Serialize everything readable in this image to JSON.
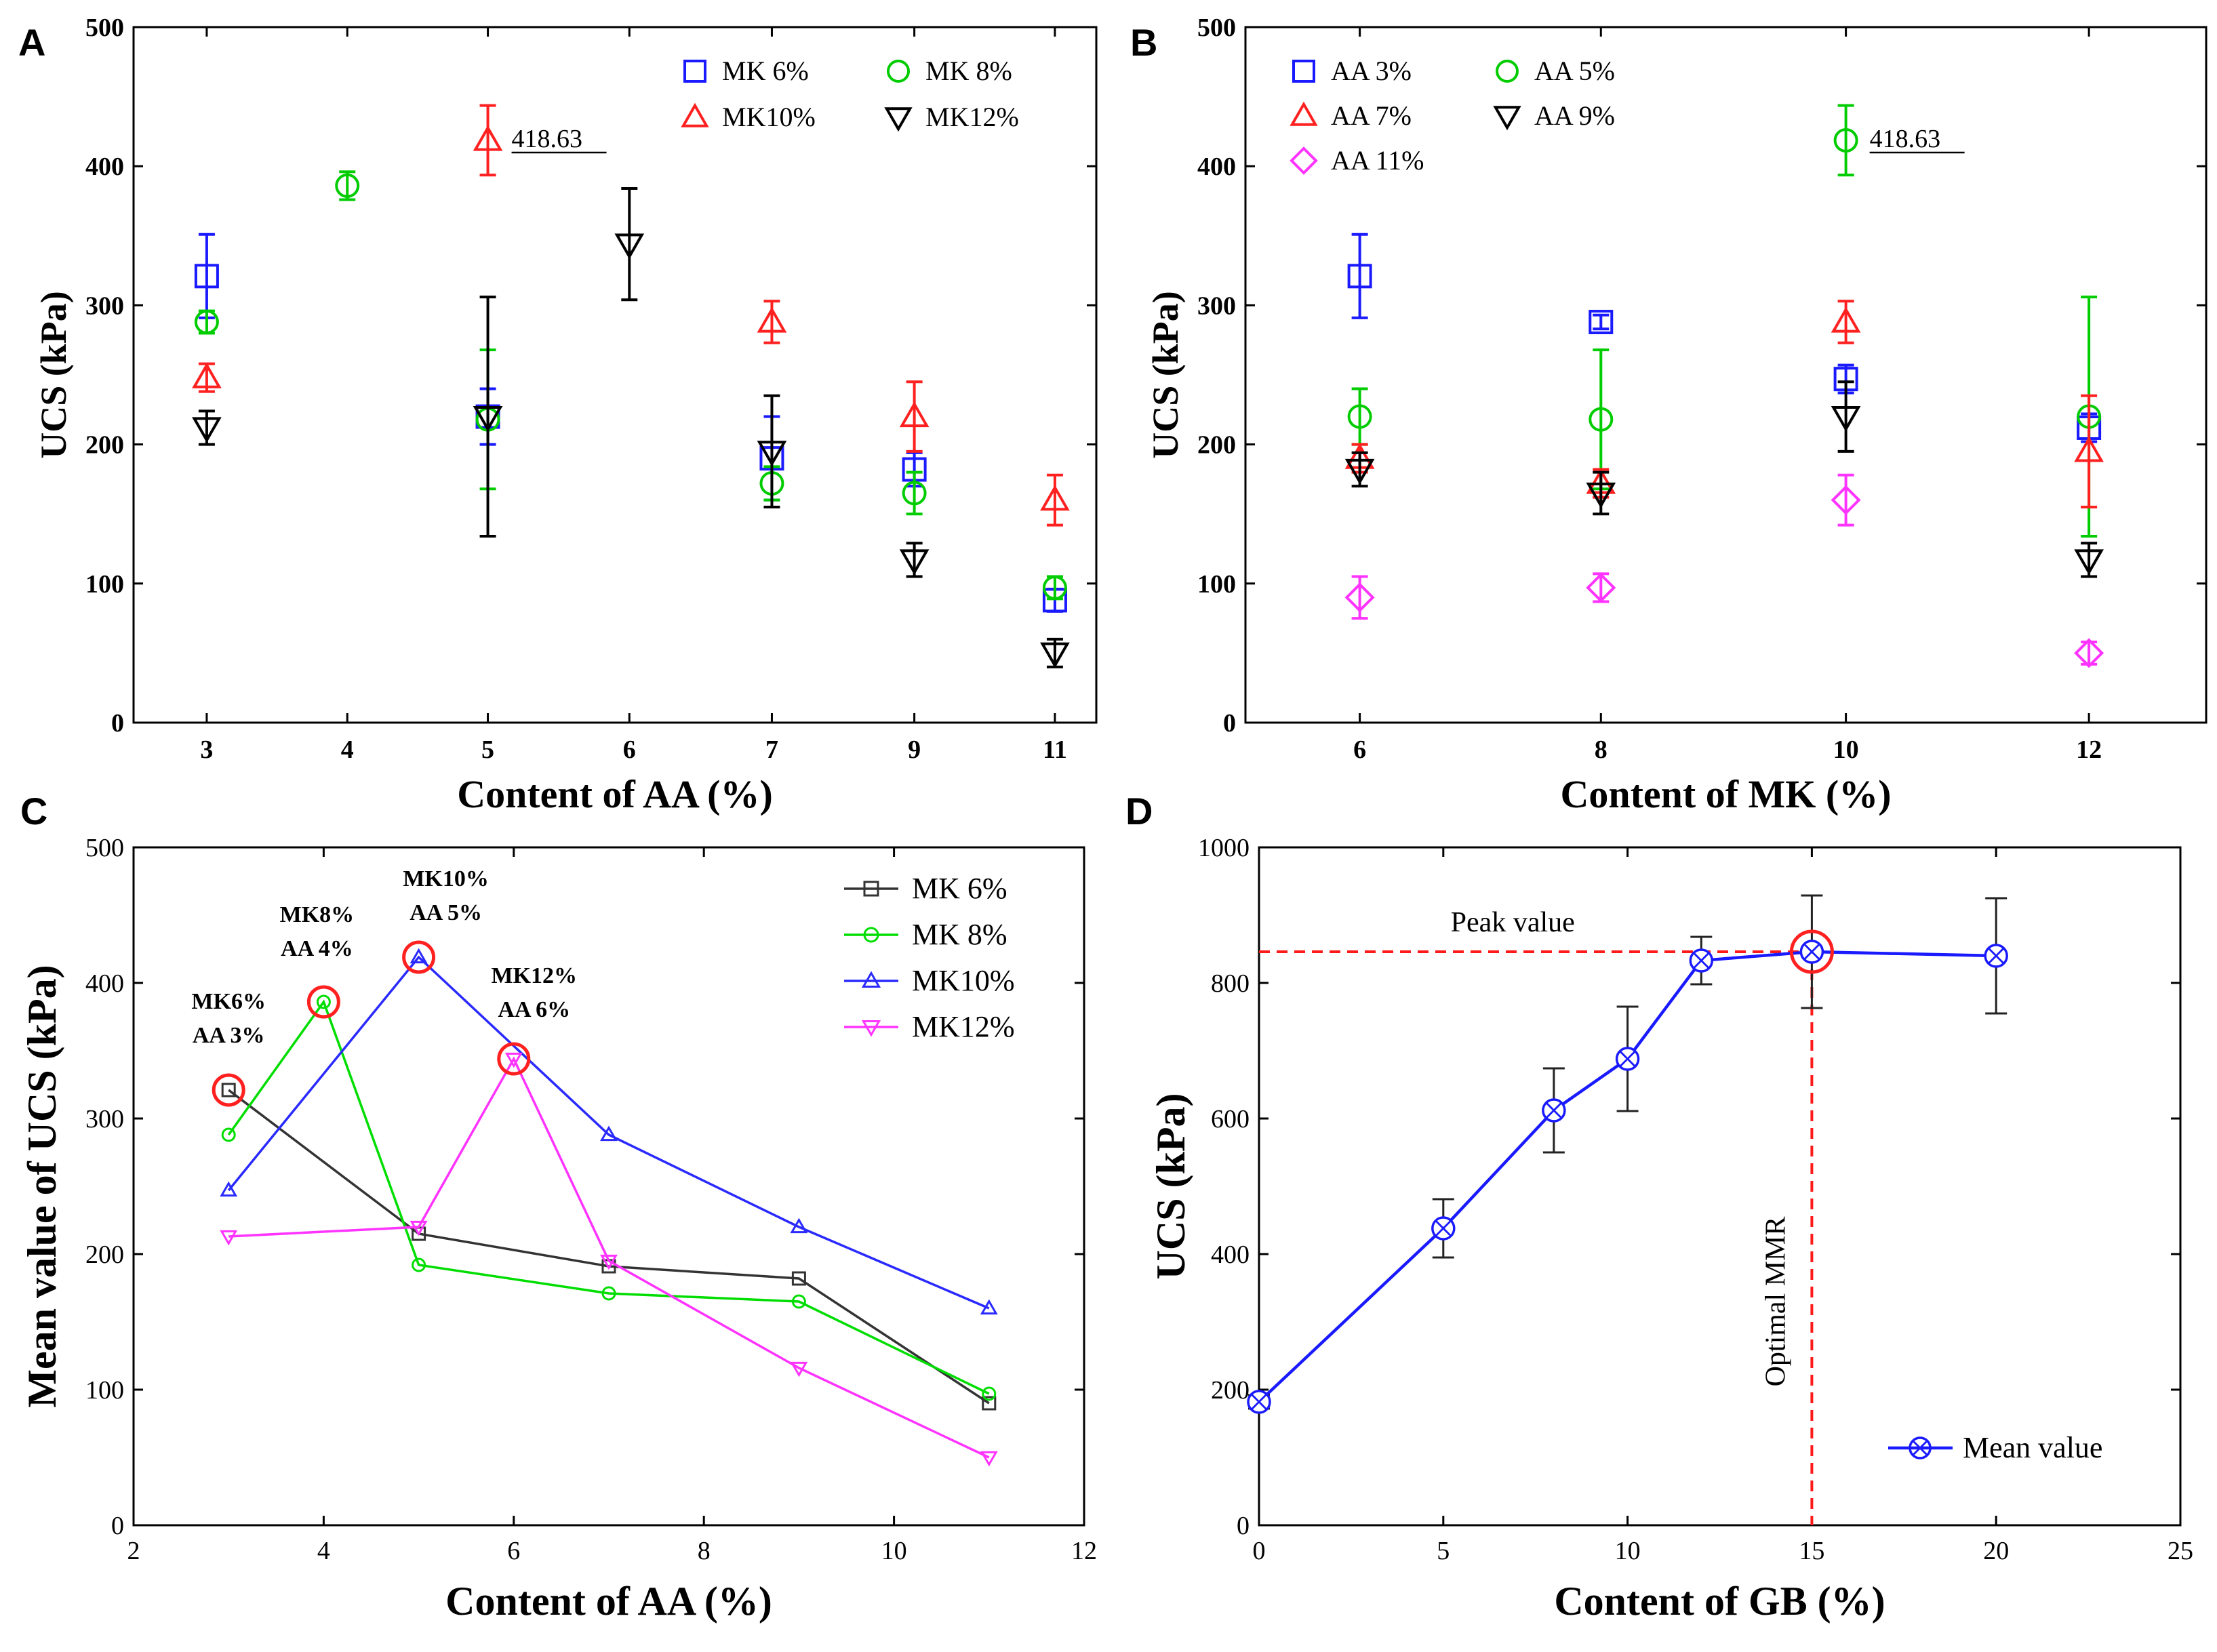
{
  "chart_data": [
    {
      "id": "A",
      "panel_label": "A",
      "type": "scatter",
      "xlabel": "Content of AA (%)",
      "ylabel": "UCS (kPa)",
      "x_ticks": [
        "3",
        "4",
        "5",
        "6",
        "7",
        "9",
        "11"
      ],
      "y_ticks": [
        "0",
        "100",
        "200",
        "300",
        "400",
        "500"
      ],
      "ylim": [
        0,
        500
      ],
      "annotation": "418.63",
      "legend_position": "top-right",
      "series": [
        {
          "name": "MK  6%",
          "color": "#1a1aff",
          "marker": "square",
          "points": [
            [
              "3",
              321,
              30
            ],
            [
              "5",
              220,
              20
            ],
            [
              "7",
              190,
              30
            ],
            [
              "9",
              182,
              12
            ],
            [
              "11",
              88,
              8
            ]
          ]
        },
        {
          "name": "MK  8%",
          "color": "#00cc00",
          "marker": "circle",
          "points": [
            [
              "3",
              288,
              8
            ],
            [
              "4",
              386,
              10
            ],
            [
              "5",
              218,
              50
            ],
            [
              "7",
              172,
              12
            ],
            [
              "9",
              165,
              15
            ],
            [
              "11",
              97,
              8
            ]
          ]
        },
        {
          "name": "MK10%",
          "color": "#ff2020",
          "marker": "triangle-up",
          "points": [
            [
              "3",
              248,
              10
            ],
            [
              "5",
              418.63,
              25
            ],
            [
              "7",
              288,
              15
            ],
            [
              "9",
              220,
              25
            ],
            [
              "11",
              160,
              18
            ]
          ]
        },
        {
          "name": "MK12%",
          "color": "#000000",
          "marker": "triangle-down",
          "points": [
            [
              "3",
              212,
              12
            ],
            [
              "5",
              220,
              86
            ],
            [
              "6",
              344,
              40
            ],
            [
              "7",
              195,
              40
            ],
            [
              "9",
              117,
              12
            ],
            [
              "11",
              50,
              10
            ]
          ]
        }
      ]
    },
    {
      "id": "B",
      "panel_label": "B",
      "type": "scatter",
      "xlabel": "Content of MK (%)",
      "ylabel": "UCS (kPa)",
      "x_ticks": [
        "6",
        "8",
        "10",
        "12"
      ],
      "y_ticks": [
        "0",
        "100",
        "200",
        "300",
        "400",
        "500"
      ],
      "ylim": [
        0,
        500
      ],
      "annotation": "418.63",
      "legend_position": "top-left",
      "series": [
        {
          "name": "AA  3%",
          "color": "#1a1aff",
          "marker": "square",
          "points": [
            [
              "6",
              321,
              30
            ],
            [
              "8",
              288,
              5
            ],
            [
              "10",
              247,
              10
            ],
            [
              "12",
              212,
              10
            ]
          ]
        },
        {
          "name": "AA  5%",
          "color": "#00cc00",
          "marker": "circle",
          "points": [
            [
              "6",
              220,
              20
            ],
            [
              "8",
              218,
              50
            ],
            [
              "10",
              418.63,
              25
            ],
            [
              "12",
              220,
              86
            ]
          ]
        },
        {
          "name": "AA  7%",
          "color": "#ff2020",
          "marker": "triangle-up",
          "points": [
            [
              "6",
              190,
              10
            ],
            [
              "8",
              172,
              10
            ],
            [
              "10",
              288,
              15
            ],
            [
              "12",
              195,
              40
            ]
          ]
        },
        {
          "name": "AA  9%",
          "color": "#000000",
          "marker": "triangle-down",
          "points": [
            [
              "6",
              182,
              12
            ],
            [
              "8",
              165,
              15
            ],
            [
              "10",
              220,
              25
            ],
            [
              "12",
              117,
              12
            ]
          ]
        },
        {
          "name": "AA 11%",
          "color": "#ff33ff",
          "marker": "diamond",
          "points": [
            [
              "6",
              90,
              15
            ],
            [
              "8",
              97,
              10
            ],
            [
              "10",
              160,
              18
            ],
            [
              "12",
              50,
              8
            ]
          ]
        }
      ]
    },
    {
      "id": "C",
      "panel_label": "C",
      "type": "line",
      "xlabel": "Content of AA (%)",
      "ylabel": "Mean value of UCS (kPa)",
      "xlim": [
        2,
        12
      ],
      "ylim": [
        0,
        500
      ],
      "x_ticks": [
        2,
        4,
        6,
        8,
        10,
        12
      ],
      "y_ticks": [
        0,
        100,
        200,
        300,
        400,
        500
      ],
      "legend_position": "top-right",
      "series": [
        {
          "name": "MK  6%",
          "color": "#333333",
          "marker": "square",
          "x": [
            3,
            5,
            7,
            9,
            11
          ],
          "values": [
            321,
            215,
            191,
            182,
            90
          ]
        },
        {
          "name": "MK  8%",
          "color": "#00dd00",
          "marker": "circle",
          "x": [
            3,
            4,
            5,
            7,
            9,
            11
          ],
          "values": [
            288,
            386,
            192,
            171,
            165,
            97
          ]
        },
        {
          "name": "MK10%",
          "color": "#2a2aff",
          "marker": "triangle-up",
          "x": [
            3,
            5,
            7,
            9,
            11
          ],
          "values": [
            247,
            419,
            288,
            220,
            160
          ]
        },
        {
          "name": "MK12%",
          "color": "#ff33ff",
          "marker": "triangle-down",
          "x": [
            3,
            5,
            6,
            7,
            9,
            11
          ],
          "values": [
            213,
            220,
            344,
            195,
            116,
            50
          ]
        }
      ],
      "highlights": [
        {
          "x": 3,
          "y": 321,
          "line1": "MK6%",
          "line2": "AA 3%"
        },
        {
          "x": 4,
          "y": 386,
          "line1": "MK8%",
          "line2": "AA 4%"
        },
        {
          "x": 5,
          "y": 419,
          "line1": "MK10%",
          "line2": "AA 5%"
        },
        {
          "x": 6,
          "y": 344,
          "line1": "MK12%",
          "line2": "AA 6%"
        }
      ]
    },
    {
      "id": "D",
      "panel_label": "D",
      "type": "line",
      "xlabel": "Content of GB (%)",
      "ylabel": "UCS (kPa)",
      "xlim": [
        0,
        25
      ],
      "ylim": [
        0,
        1000
      ],
      "x_ticks": [
        0,
        5,
        10,
        15,
        20,
        25
      ],
      "y_ticks": [
        0,
        200,
        400,
        600,
        800,
        1000
      ],
      "legend_position": "bottom-right",
      "series": [
        {
          "name": "Mean value",
          "color": "#1a1aff",
          "marker": "circle-x",
          "x": [
            0,
            5,
            8,
            10,
            12,
            15,
            20
          ],
          "values": [
            182,
            438,
            612,
            688,
            833,
            846,
            840
          ],
          "errors": [
            10,
            43,
            62,
            77,
            35,
            83,
            85
          ]
        }
      ],
      "peak": {
        "x": 15,
        "y": 846,
        "label": "Peak value"
      },
      "optimal_label": "Optimal MMR"
    }
  ]
}
